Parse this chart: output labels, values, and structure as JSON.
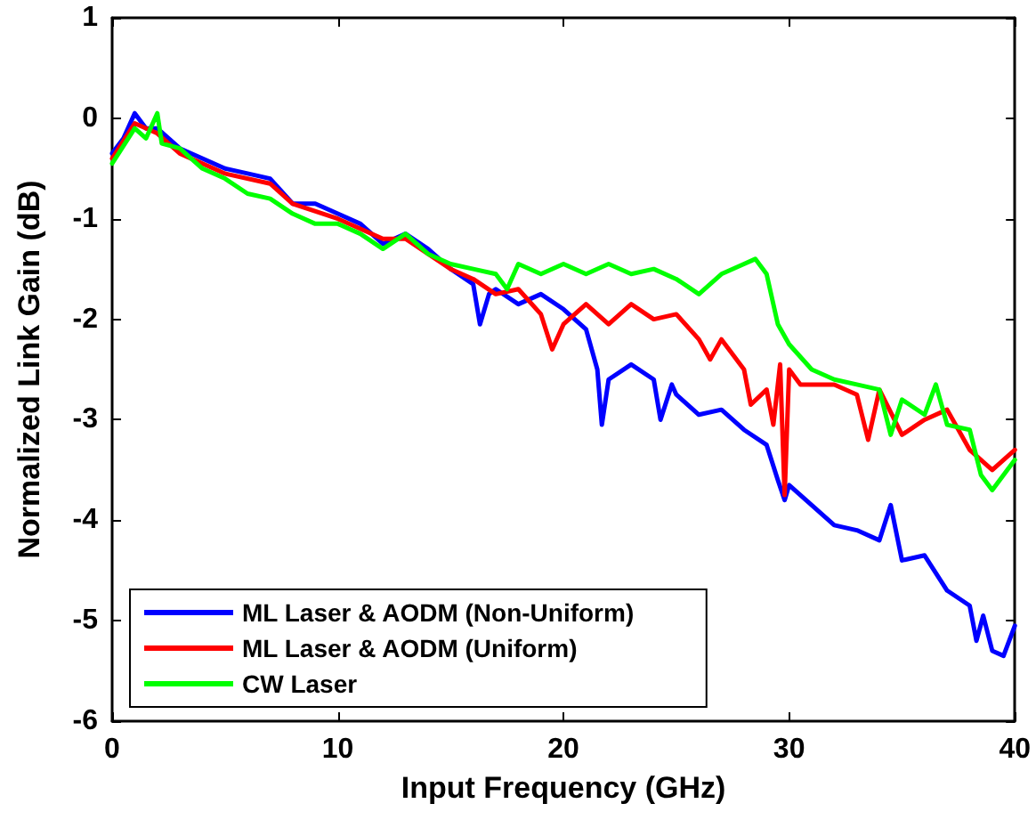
{
  "chart_data": {
    "type": "line",
    "xlabel": "Input Frequency (GHz)",
    "ylabel": "Normalized Link Gain (dB)",
    "xlim": [
      0,
      40
    ],
    "xticks": [
      0,
      10,
      20,
      30,
      40
    ],
    "ylim": [
      -6,
      1
    ],
    "yticks": [
      -6,
      -5,
      -4,
      -3,
      -2,
      -1,
      0,
      1
    ],
    "grid": false,
    "legend": "bottom left",
    "marker": "none",
    "line_style": "solid",
    "series": [
      {
        "name": "ML Laser & AODM (Non-Uniform)",
        "color": "#0000ff",
        "x": [
          0,
          0.5,
          1,
          1.5,
          2,
          3,
          4,
          5,
          6,
          7,
          8,
          9,
          10,
          11,
          12,
          13,
          14,
          15,
          16,
          16.3,
          16.7,
          17,
          18,
          19,
          20,
          21,
          21.5,
          21.7,
          22,
          23,
          24,
          24.3,
          24.8,
          25,
          26,
          27,
          28,
          29,
          29.5,
          29.8,
          30,
          31,
          32,
          33,
          34,
          34.5,
          35,
          36,
          37,
          38,
          38.3,
          38.6,
          39,
          39.5,
          40
        ],
        "values": [
          -0.35,
          -0.2,
          0.05,
          -0.1,
          -0.1,
          -0.3,
          -0.4,
          -0.5,
          -0.55,
          -0.6,
          -0.85,
          -0.85,
          -0.95,
          -1.05,
          -1.25,
          -1.15,
          -1.3,
          -1.5,
          -1.65,
          -2.05,
          -1.75,
          -1.7,
          -1.85,
          -1.75,
          -1.9,
          -2.1,
          -2.5,
          -3.05,
          -2.6,
          -2.45,
          -2.6,
          -3.0,
          -2.65,
          -2.75,
          -2.95,
          -2.9,
          -3.1,
          -3.25,
          -3.6,
          -3.8,
          -3.65,
          -3.85,
          -4.05,
          -4.1,
          -4.2,
          -3.85,
          -4.4,
          -4.35,
          -4.7,
          -4.85,
          -5.2,
          -4.95,
          -5.3,
          -5.35,
          -5.05
        ]
      },
      {
        "name": "ML Laser & AODM (Uniform)",
        "color": "#ff0000",
        "x": [
          0,
          1,
          2,
          3,
          5,
          7,
          8,
          10,
          12,
          13,
          14,
          15,
          16,
          17,
          18,
          19,
          19.5,
          20,
          21,
          22,
          23,
          24,
          25,
          26,
          26.5,
          27,
          28,
          28.3,
          29,
          29.3,
          29.6,
          29.8,
          30,
          30.5,
          32,
          33,
          33.5,
          34,
          35,
          36,
          37,
          38,
          39,
          40
        ],
        "values": [
          -0.4,
          -0.05,
          -0.15,
          -0.35,
          -0.55,
          -0.65,
          -0.85,
          -1.0,
          -1.2,
          -1.2,
          -1.35,
          -1.5,
          -1.6,
          -1.75,
          -1.7,
          -1.95,
          -2.3,
          -2.05,
          -1.85,
          -2.05,
          -1.85,
          -2.0,
          -1.95,
          -2.2,
          -2.4,
          -2.2,
          -2.5,
          -2.85,
          -2.7,
          -3.05,
          -2.45,
          -3.75,
          -2.5,
          -2.65,
          -2.65,
          -2.75,
          -3.2,
          -2.7,
          -3.15,
          -3.0,
          -2.9,
          -3.3,
          -3.5,
          -3.3
        ]
      },
      {
        "name": "CW Laser",
        "color": "#00ff00",
        "x": [
          0,
          1,
          1.5,
          2,
          2.2,
          3,
          4,
          5,
          6,
          7,
          8,
          9,
          10,
          11,
          12,
          13,
          14,
          15,
          16,
          17,
          17.5,
          18,
          19,
          20,
          21,
          22,
          23,
          24,
          25,
          26,
          27,
          28,
          28.5,
          29,
          29.5,
          30,
          31,
          32,
          33,
          34,
          34.5,
          35,
          36,
          36.5,
          37,
          38,
          38.5,
          39,
          39.5,
          40
        ],
        "values": [
          -0.45,
          -0.1,
          -0.2,
          0.05,
          -0.25,
          -0.3,
          -0.5,
          -0.6,
          -0.75,
          -0.8,
          -0.95,
          -1.05,
          -1.05,
          -1.15,
          -1.3,
          -1.15,
          -1.35,
          -1.45,
          -1.5,
          -1.55,
          -1.7,
          -1.45,
          -1.55,
          -1.45,
          -1.55,
          -1.45,
          -1.55,
          -1.5,
          -1.6,
          -1.75,
          -1.55,
          -1.45,
          -1.4,
          -1.55,
          -2.05,
          -2.25,
          -2.5,
          -2.6,
          -2.65,
          -2.7,
          -3.15,
          -2.8,
          -2.95,
          -2.65,
          -3.05,
          -3.1,
          -3.55,
          -3.7,
          -3.55,
          -3.4
        ]
      }
    ]
  }
}
